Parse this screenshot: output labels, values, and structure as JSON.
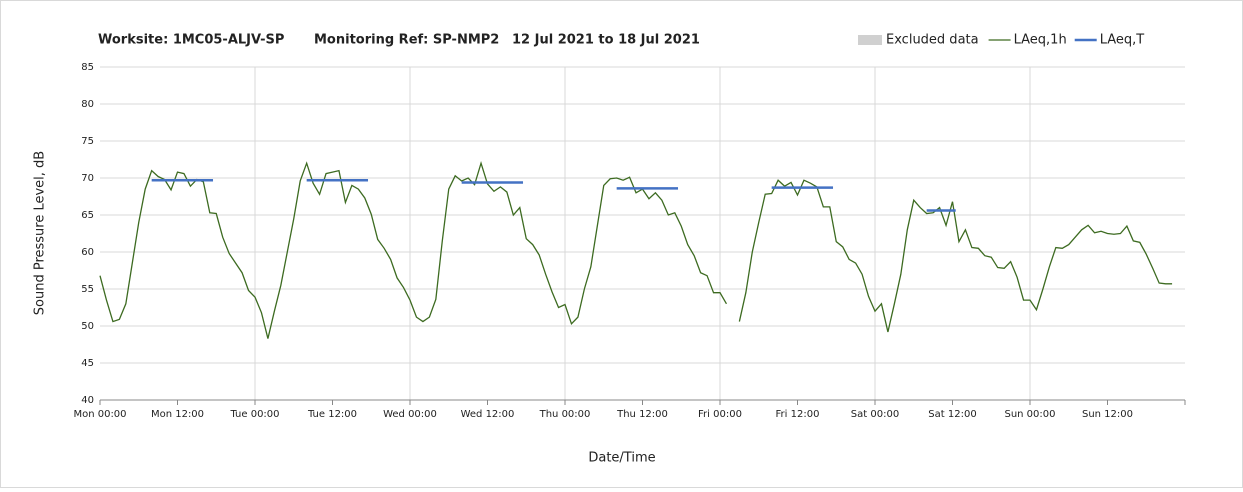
{
  "chart_data": {
    "type": "line",
    "title_parts": [
      "Worksite: 1MC05-ALJV-SP",
      "Monitoring Ref: SP-NMP2",
      "12 Jul 2021 to 18 Jul 2021"
    ],
    "x_label": "Date/Time",
    "y_label": "Sound Pressure Level, dB",
    "xlim": [
      0,
      168
    ],
    "ylim": [
      40,
      85
    ],
    "yticks": [
      40,
      45,
      50,
      55,
      60,
      65,
      70,
      75,
      80,
      85
    ],
    "xticks": [
      {
        "value": 0,
        "label": "Mon 00:00"
      },
      {
        "value": 12,
        "label": "Mon 12:00"
      },
      {
        "value": 24,
        "label": "Tue 00:00"
      },
      {
        "value": 36,
        "label": "Tue 12:00"
      },
      {
        "value": 48,
        "label": "Wed 00:00"
      },
      {
        "value": 60,
        "label": "Wed 12:00"
      },
      {
        "value": 72,
        "label": "Thu 00:00"
      },
      {
        "value": 84,
        "label": "Thu 12:00"
      },
      {
        "value": 96,
        "label": "Fri 00:00"
      },
      {
        "value": 108,
        "label": "Fri 12:00"
      },
      {
        "value": 120,
        "label": "Sat 00:00"
      },
      {
        "value": 132,
        "label": "Sat 12:00"
      },
      {
        "value": 144,
        "label": "Sun 00:00"
      },
      {
        "value": 156,
        "label": "Sun 12:00"
      }
    ],
    "grid": true,
    "legend_position": "top-right",
    "excluded": {
      "name": "Excluded data",
      "color": "#d0d0d0"
    },
    "series": [
      {
        "name": "LAeq,1h",
        "color": "#3d6b21",
        "values": [
          56.8,
          53.5,
          50.6,
          50.9,
          53,
          58.5,
          64,
          68.5,
          71,
          70.2,
          69.8,
          68.4,
          70.8,
          70.6,
          68.9,
          69.8,
          69.5,
          65.3,
          65.2,
          62,
          59.8,
          58.5,
          57.2,
          54.8,
          53.9,
          51.8,
          48.3,
          52,
          55.5,
          60,
          64.5,
          69.6,
          72,
          69.3,
          67.8,
          70.6,
          70.8,
          71,
          66.7,
          69,
          68.5,
          67.3,
          65.1,
          61.7,
          60.5,
          59,
          56.5,
          55.2,
          53.5,
          51.2,
          50.6,
          51.2,
          53.6,
          61.5,
          68.5,
          70.3,
          69.6,
          70,
          69.1,
          72,
          69.2,
          68.2,
          68.8,
          68.1,
          65,
          66,
          61.8,
          61,
          59.6,
          57,
          54.6,
          52.5,
          52.9,
          50.3,
          51.2,
          55,
          58,
          63.5,
          69,
          69.9,
          70,
          69.7,
          70.1,
          68,
          68.5,
          67.2,
          68,
          67,
          65,
          65.3,
          63.5,
          61,
          59.5,
          57.2,
          56.8,
          54.5,
          54.5,
          53,
          null,
          50.6,
          54.5,
          60,
          64,
          67.8,
          67.9,
          69.7,
          68.9,
          69.4,
          67.7,
          69.7,
          69.3,
          68.8,
          66.1,
          66.1,
          61.4,
          60.7,
          59,
          58.5,
          57,
          54,
          52,
          53,
          49.2,
          53,
          57,
          63,
          67,
          66,
          65.2,
          65.3,
          66,
          63.6,
          66.8,
          61.4,
          63,
          60.6,
          60.5,
          59.5,
          59.3,
          57.9,
          57.8,
          58.7,
          56.6,
          53.5,
          53.5,
          52.2,
          55,
          58,
          60.6,
          60.5,
          61,
          62,
          63,
          63.6,
          62.6,
          62.8,
          62.5,
          62.4,
          62.5,
          63.5,
          61.5,
          61.3,
          59.7,
          57.8,
          55.8,
          55.7,
          55.7,
          null
        ]
      },
      {
        "name": "LAeq,T",
        "color": "#4472c4",
        "segments": [
          {
            "x": [
              8,
              17.5
            ],
            "value": 69.7
          },
          {
            "x": [
              32,
              41.5
            ],
            "value": 69.7
          },
          {
            "x": [
              56,
              65.5
            ],
            "value": 69.4
          },
          {
            "x": [
              80,
              89.5
            ],
            "value": 68.6
          },
          {
            "x": [
              104,
              113.5
            ],
            "value": 68.7
          },
          {
            "x": [
              128,
              132.5
            ],
            "value": 65.6
          }
        ]
      }
    ]
  }
}
